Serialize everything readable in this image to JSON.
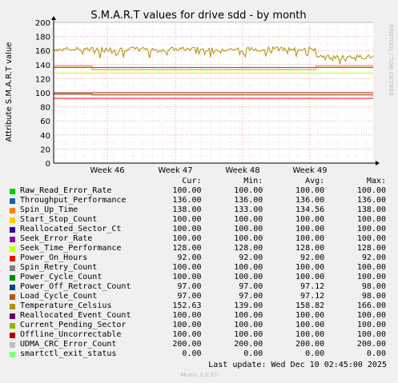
{
  "page": {
    "footer_label": "Last update:",
    "footer_time": "Wed Dec 10 02:45:00 2025",
    "generator": "Munin 2.0.57",
    "watermark": "RRDTOOL / TOBI OETIKER",
    "legend_headers": [
      "Cur:",
      "Min:",
      "Avg:",
      "Max:"
    ]
  },
  "chart_data": {
    "type": "line",
    "title": "S.M.A.R.T values for drive sdd - by month",
    "ylabel": "Attribute S.M.A.R.T value",
    "xlabel": "",
    "ylim": [
      0,
      200
    ],
    "yticks": [
      0,
      20,
      40,
      60,
      80,
      100,
      120,
      140,
      160,
      180,
      200
    ],
    "xticks": [
      "Week 46",
      "Week 47",
      "Week 48",
      "Week 49"
    ],
    "grid": true,
    "legend_position": "bottom",
    "series": [
      {
        "name": "Raw_Read_Error_Rate",
        "color": "#00cc00",
        "cur": "100.00",
        "min": "100.00",
        "avg": "100.00",
        "max": "100.00",
        "values": [
          100,
          100
        ]
      },
      {
        "name": "Throughput_Performance",
        "color": "#0066b3",
        "cur": "136.00",
        "min": "136.00",
        "avg": "136.00",
        "max": "136.00",
        "values": [
          136,
          136
        ]
      },
      {
        "name": "Spin_Up_Time",
        "color": "#ff8000",
        "cur": "138.00",
        "min": "133.00",
        "avg": "134.56",
        "max": "138.00",
        "values": [
          138,
          138,
          133,
          133,
          138,
          138
        ]
      },
      {
        "name": "Start_Stop_Count",
        "color": "#ffcc00",
        "cur": "100.00",
        "min": "100.00",
        "avg": "100.00",
        "max": "100.00",
        "values": [
          100,
          100
        ]
      },
      {
        "name": "Reallocated_Sector_Ct",
        "color": "#330099",
        "cur": "100.00",
        "min": "100.00",
        "avg": "100.00",
        "max": "100.00",
        "values": [
          100,
          100
        ]
      },
      {
        "name": "Seek_Error_Rate",
        "color": "#990099",
        "cur": "100.00",
        "min": "100.00",
        "avg": "100.00",
        "max": "100.00",
        "values": [
          100,
          100
        ]
      },
      {
        "name": "Seek_Time_Performance",
        "color": "#ccff00",
        "cur": "128.00",
        "min": "128.00",
        "avg": "128.00",
        "max": "128.00",
        "values": [
          128,
          128
        ]
      },
      {
        "name": "Power_On_Hours",
        "color": "#ff0000",
        "cur": "92.00",
        "min": "92.00",
        "avg": "92.00",
        "max": "92.00",
        "values": [
          92,
          92
        ]
      },
      {
        "name": "Spin_Retry_Count",
        "color": "#808080",
        "cur": "100.00",
        "min": "100.00",
        "avg": "100.00",
        "max": "100.00",
        "values": [
          100,
          100
        ]
      },
      {
        "name": "Power_Cycle_Count",
        "color": "#008f00",
        "cur": "100.00",
        "min": "100.00",
        "avg": "100.00",
        "max": "100.00",
        "values": [
          100,
          100
        ]
      },
      {
        "name": "Power_Off_Retract_Count",
        "color": "#00487d",
        "cur": "97.00",
        "min": "97.00",
        "avg": "97.12",
        "max": "98.00",
        "values": [
          98,
          98,
          97,
          97
        ]
      },
      {
        "name": "Load_Cycle_Count",
        "color": "#b35a00",
        "cur": "97.00",
        "min": "97.00",
        "avg": "97.12",
        "max": "98.00",
        "values": [
          98,
          98,
          97,
          97
        ]
      },
      {
        "name": "Temperature_Celsius",
        "color": "#b38f00",
        "cur": "152.63",
        "min": "139.00",
        "avg": "158.82",
        "max": "166.00",
        "values": []
      },
      {
        "name": "Reallocated_Event_Count",
        "color": "#6b006b",
        "cur": "100.00",
        "min": "100.00",
        "avg": "100.00",
        "max": "100.00",
        "values": [
          100,
          100
        ]
      },
      {
        "name": "Current_Pending_Sector",
        "color": "#8fb300",
        "cur": "100.00",
        "min": "100.00",
        "avg": "100.00",
        "max": "100.00",
        "values": [
          100,
          100
        ]
      },
      {
        "name": "Offline_Uncorrectable",
        "color": "#b30000",
        "cur": "100.00",
        "min": "100.00",
        "avg": "100.00",
        "max": "100.00",
        "values": [
          100,
          100
        ]
      },
      {
        "name": "UDMA_CRC_Error_Count",
        "color": "#bebebe",
        "cur": "200.00",
        "min": "200.00",
        "avg": "200.00",
        "max": "200.00",
        "values": [
          200,
          200
        ]
      },
      {
        "name": "smartctl_exit_status",
        "color": "#80ff80",
        "cur": "0.00",
        "min": "0.00",
        "avg": "0.00",
        "max": "0.00",
        "values": [
          0,
          0
        ]
      }
    ]
  }
}
